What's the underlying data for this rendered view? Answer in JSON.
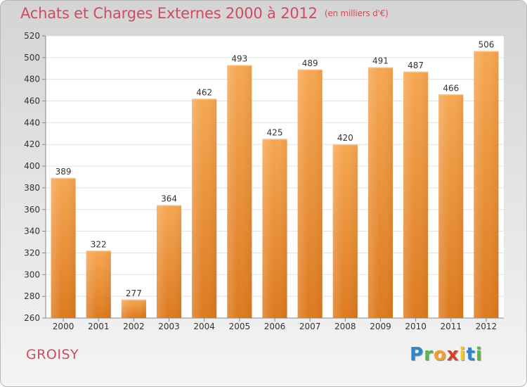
{
  "title": "Achats et Charges Externes 2000 à 2012",
  "unit": "(en milliers d'€)",
  "commune": "GROISY",
  "logo": {
    "p": "P",
    "r": "r",
    "o": "o",
    "x": "x",
    "i1": "i",
    "t": "t",
    "i2": "i"
  },
  "colors": {
    "accent": "#d14a62",
    "bar_top": "#f6a752",
    "bar_bottom": "#dd7a1f"
  },
  "chart_data": {
    "type": "bar",
    "title": "Achats et Charges Externes 2000 à 2012",
    "subtitle": "(en milliers d'€)",
    "categories": [
      "2000",
      "2001",
      "2002",
      "2003",
      "2004",
      "2005",
      "2006",
      "2007",
      "2008",
      "2009",
      "2010",
      "2011",
      "2012"
    ],
    "values": [
      389,
      322,
      277,
      364,
      462,
      493,
      425,
      489,
      420,
      491,
      487,
      466,
      506
    ],
    "value_labels": [
      "389",
      "322",
      "277",
      "364",
      "462",
      "493",
      "425",
      "489",
      "420",
      "491",
      "487",
      "466",
      "506"
    ],
    "ylim": [
      260,
      520
    ],
    "yticks": [
      "260",
      "280",
      "300",
      "320",
      "340",
      "360",
      "380",
      "400",
      "420",
      "440",
      "460",
      "480",
      "500",
      "520"
    ],
    "grid": true,
    "xlabel": "",
    "ylabel": ""
  }
}
